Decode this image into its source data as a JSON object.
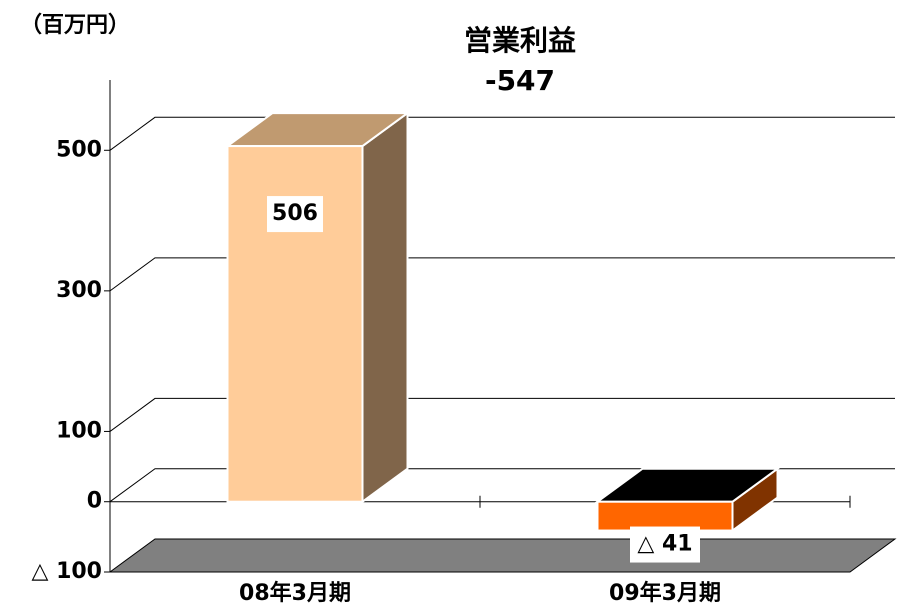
{
  "chart_data": {
    "type": "bar3d",
    "title": "営業利益",
    "subtitle": "-547",
    "unit_label": "（百万円）",
    "categories": [
      "08年3月期",
      "09年3月期"
    ],
    "values": [
      506,
      -41
    ],
    "value_labels": [
      "506",
      "△ 41"
    ],
    "colors": [
      {
        "front": "#ffcc99",
        "top": "#c09a70",
        "side": "#80654a"
      },
      {
        "front": "#ff6600",
        "top": "#000000",
        "side": "#803300"
      }
    ],
    "ylim": [
      -100,
      600
    ],
    "yticks": [
      {
        "value": -100,
        "label": "△ 100"
      },
      0,
      100,
      300,
      500
    ],
    "grid": true
  }
}
